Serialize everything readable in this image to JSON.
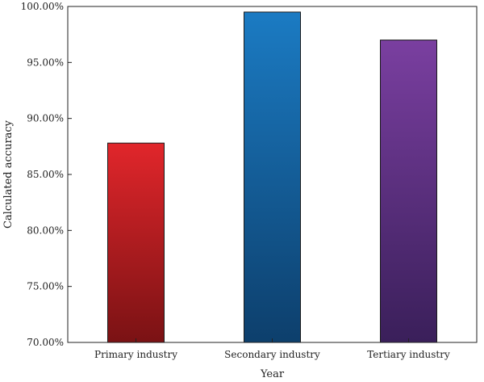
{
  "chart_data": {
    "type": "bar",
    "xlabel": "Year",
    "ylabel": "Calculated accuracy",
    "ylim": [
      70,
      100
    ],
    "ytick_values": [
      70,
      75,
      80,
      85,
      90,
      95,
      100
    ],
    "ytick_labels": [
      "70.00%",
      "75.00%",
      "80.00%",
      "85.00%",
      "90.00%",
      "95.00%",
      "100.00%"
    ],
    "categories": [
      "Primary industry",
      "Secondary industry",
      "Tertiary industry"
    ],
    "values": [
      87.8,
      99.5,
      97.0
    ],
    "colors": [
      {
        "top": "#e1262b",
        "bottom": "#7a1214"
      },
      {
        "top": "#1b7bc3",
        "bottom": "#0d3f6c"
      },
      {
        "top": "#7a3fa0",
        "bottom": "#3a1f5a"
      }
    ],
    "grid": false,
    "legend": "none"
  }
}
